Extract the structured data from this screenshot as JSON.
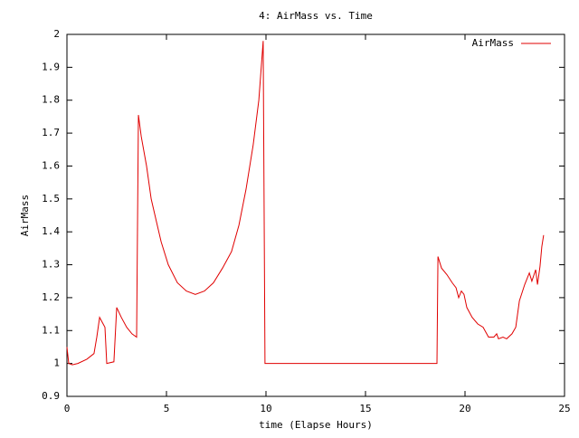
{
  "chart_data": {
    "type": "line",
    "title": "4: AirMass vs. Time",
    "x_label": "time (Elapse Hours)",
    "y_label": "AirMass",
    "xlim": [
      0,
      25
    ],
    "xticks": [
      0,
      5,
      10,
      15,
      20,
      25
    ],
    "ylim": [
      0.9,
      2
    ],
    "yticks": [
      0.9,
      1,
      1.1,
      1.2,
      1.3,
      1.4,
      1.5,
      1.6,
      1.7,
      1.8,
      1.9,
      2
    ],
    "legend": "top-right",
    "grid": false,
    "series": [
      {
        "name": "AirMass",
        "color": "#e00000",
        "x": [
          0,
          0.09,
          0.27,
          0.55,
          1.0,
          1.36,
          1.5,
          1.64,
          1.91,
          2.0,
          2.36,
          2.5,
          2.73,
          3.0,
          3.27,
          3.5,
          3.59,
          3.73,
          4.0,
          4.23,
          4.5,
          4.73,
          5.09,
          5.55,
          6.0,
          6.45,
          6.91,
          7.36,
          7.82,
          8.27,
          8.64,
          9.0,
          9.36,
          9.64,
          9.86,
          9.95,
          18.59,
          18.64,
          18.82,
          19.09,
          19.36,
          19.55,
          19.68,
          19.82,
          19.95,
          20.09,
          20.36,
          20.64,
          20.91,
          21.18,
          21.45,
          21.59,
          21.68,
          21.91,
          22.09,
          22.36,
          22.55,
          22.73,
          23.0,
          23.23,
          23.36,
          23.55,
          23.64,
          23.77,
          23.86,
          23.95
        ],
        "values": [
          1.05,
          1.0,
          0.996,
          1.0,
          1.013,
          1.03,
          1.08,
          1.14,
          1.11,
          1.0,
          1.005,
          1.17,
          1.14,
          1.11,
          1.09,
          1.08,
          1.755,
          1.69,
          1.6,
          1.5,
          1.43,
          1.37,
          1.3,
          1.245,
          1.22,
          1.21,
          1.22,
          1.245,
          1.29,
          1.34,
          1.42,
          1.53,
          1.665,
          1.8,
          1.98,
          1.0,
          1.0,
          1.325,
          1.29,
          1.27,
          1.245,
          1.23,
          1.2,
          1.22,
          1.21,
          1.17,
          1.14,
          1.12,
          1.11,
          1.08,
          1.08,
          1.09,
          1.075,
          1.08,
          1.075,
          1.09,
          1.11,
          1.19,
          1.24,
          1.275,
          1.25,
          1.285,
          1.24,
          1.295,
          1.355,
          1.39
        ]
      }
    ]
  }
}
